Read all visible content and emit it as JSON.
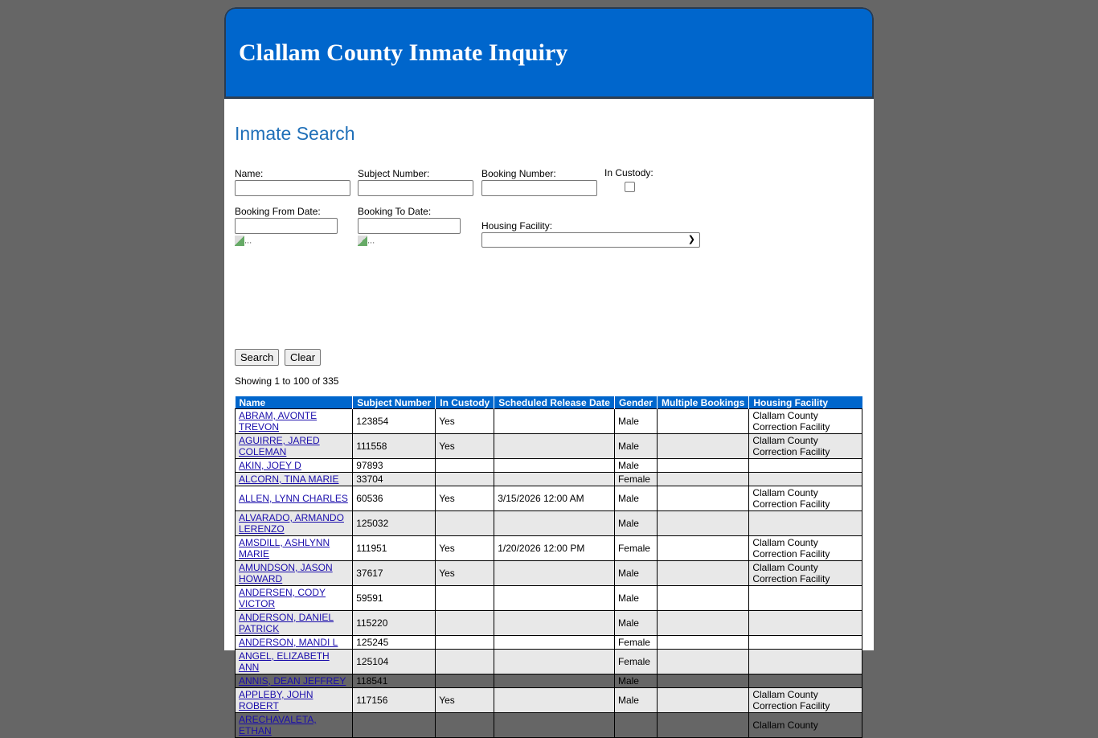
{
  "header": {
    "title": "Clallam County Inmate Inquiry"
  },
  "page_title": "Inmate Search",
  "form": {
    "name_label": "Name:",
    "subject_label": "Subject Number:",
    "booking_label": "Booking Number:",
    "custody_label": "In Custody:",
    "from_label": "Booking From Date:",
    "to_label": "Booking To Date:",
    "housing_label": "Housing Facility:",
    "calendar_alt": "...",
    "search_button": "Search",
    "clear_button": "Clear"
  },
  "showing": "Showing 1 to 100 of 335",
  "table": {
    "headers": [
      "Name",
      "Subject Number",
      "In Custody",
      "Scheduled Release Date",
      "Gender",
      "Multiple Bookings",
      "Housing Facility"
    ],
    "rows": [
      [
        "ABRAM, AVONTE TREVON",
        "123854",
        "Yes",
        "",
        "Male",
        "",
        "Clallam County Correction Facility"
      ],
      [
        "AGUIRRE, JARED COLEMAN",
        "111558",
        "Yes",
        "",
        "Male",
        "",
        "Clallam County Correction Facility"
      ],
      [
        "AKIN, JOEY D",
        "97893",
        "",
        "",
        "Male",
        "",
        ""
      ],
      [
        "ALCORN, TINA MARIE",
        "33704",
        "",
        "",
        "Female",
        "",
        ""
      ],
      [
        "ALLEN, LYNN CHARLES",
        "60536",
        "Yes",
        "3/15/2026 12:00 AM",
        "Male",
        "",
        "Clallam County Correction Facility"
      ],
      [
        "ALVARADO, ARMANDO LERENZO",
        "125032",
        "",
        "",
        "Male",
        "",
        ""
      ],
      [
        "AMSDILL, ASHLYNN MARIE",
        "111951",
        "Yes",
        "1/20/2026 12:00 PM",
        "Female",
        "",
        "Clallam County Correction Facility"
      ],
      [
        "AMUNDSON, JASON HOWARD",
        "37617",
        "Yes",
        "",
        "Male",
        "",
        "Clallam County Correction Facility"
      ],
      [
        "ANDERSEN, CODY VICTOR",
        "59591",
        "",
        "",
        "Male",
        "",
        ""
      ],
      [
        "ANDERSON, DANIEL PATRICK",
        "115220",
        "",
        "",
        "Male",
        "",
        ""
      ],
      [
        "ANDERSON, MANDI L",
        "125245",
        "",
        "",
        "Female",
        "",
        ""
      ],
      [
        "ANGEL, ELIZABETH ANN",
        "125104",
        "",
        "",
        "Female",
        "",
        ""
      ],
      [
        "ANNIS, DEAN JEFFREY",
        "118541",
        "",
        "",
        "Male",
        "",
        ""
      ],
      [
        "APPLEBY, JOHN ROBERT",
        "117156",
        "Yes",
        "",
        "Male",
        "",
        "Clallam County Correction Facility"
      ],
      [
        "ARECHAVALETA, ETHAN",
        "",
        "",
        "",
        "",
        "",
        "Clallam County"
      ]
    ]
  }
}
